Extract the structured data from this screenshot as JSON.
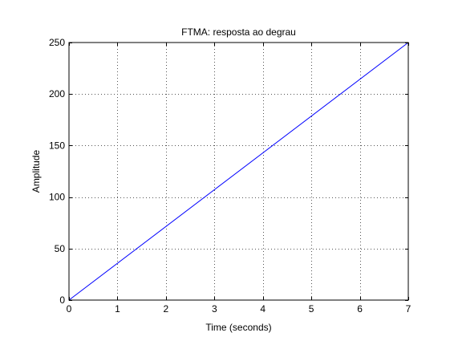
{
  "chart_data": {
    "type": "line",
    "title": "FTMA: resposta ao degrau",
    "xlabel": "Time (seconds)",
    "ylabel": "Amplitude",
    "xlim": [
      0,
      7
    ],
    "ylim": [
      0,
      250
    ],
    "xticks": [
      0,
      1,
      2,
      3,
      4,
      5,
      6,
      7
    ],
    "yticks": [
      0,
      50,
      100,
      150,
      200,
      250
    ],
    "grid": true,
    "series": [
      {
        "color": "#0000ff",
        "x": [
          0,
          7
        ],
        "y": [
          0,
          250
        ]
      }
    ]
  }
}
